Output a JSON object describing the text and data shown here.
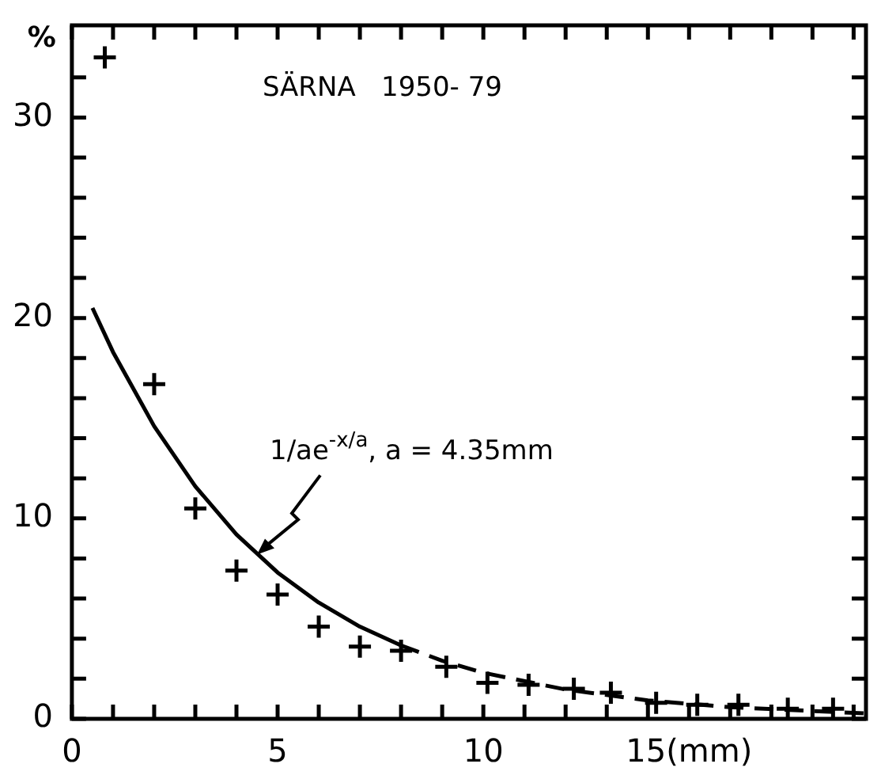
{
  "chart_data": {
    "type": "scatter",
    "title": "SÄRNA   1950- 79",
    "ylabel": "%",
    "xlim": [
      0,
      19.3
    ],
    "ylim": [
      0,
      34.6
    ],
    "xticks": [
      0,
      {
        "value": 1,
        "label": null
      },
      {
        "value": 2,
        "label": null
      },
      {
        "value": 3,
        "label": null
      },
      {
        "value": 4,
        "label": null
      },
      5,
      {
        "value": 6,
        "label": null
      },
      {
        "value": 7,
        "label": null
      },
      {
        "value": 8,
        "label": null
      },
      {
        "value": 9,
        "label": null
      },
      10,
      {
        "value": 11,
        "label": null
      },
      {
        "value": 12,
        "label": null
      },
      {
        "value": 13,
        "label": null
      },
      {
        "value": 14,
        "label": null
      },
      {
        "value": 15,
        "label": "15(mm)"
      },
      {
        "value": 16,
        "label": null
      },
      {
        "value": 17,
        "label": null
      },
      {
        "value": 18,
        "label": null
      },
      {
        "value": 19,
        "label": null
      }
    ],
    "yticks": [
      0,
      {
        "value": 2,
        "label": null
      },
      {
        "value": 4,
        "label": null
      },
      {
        "value": 6,
        "label": null
      },
      {
        "value": 8,
        "label": null
      },
      10,
      {
        "value": 12,
        "label": null
      },
      {
        "value": 14,
        "label": null
      },
      {
        "value": 16,
        "label": null
      },
      {
        "value": 18,
        "label": null
      },
      20,
      {
        "value": 22,
        "label": null
      },
      {
        "value": 24,
        "label": null
      },
      {
        "value": 26,
        "label": null
      },
      {
        "value": 28,
        "label": null
      },
      30,
      {
        "value": 32,
        "label": null
      }
    ],
    "grid": false,
    "legend": false,
    "annotations": [
      {
        "text": "1/ae$^{-x/a}$, a = 4.35mm",
        "x": 4.5,
        "y": 8.2
      }
    ],
    "series": [
      {
        "marker": "cross",
        "color": "#000000",
        "x": [
          0.8,
          2,
          3,
          4,
          5,
          6,
          7,
          8,
          9.1,
          10.1,
          11.1,
          12.2,
          13.1,
          14.2,
          15.2,
          16.2,
          17.4,
          18.5
        ],
        "values": [
          33.0,
          16.7,
          10.5,
          7.4,
          6.2,
          4.6,
          3.6,
          3.4,
          2.6,
          1.8,
          1.7,
          1.5,
          1.3,
          0.8,
          0.7,
          0.7,
          0.5,
          0.5
        ]
      },
      {
        "type": "line",
        "marker": "none",
        "line_style": "solid",
        "color": "#000000",
        "x": [
          0.5,
          1,
          2,
          3,
          4,
          5,
          6,
          7,
          8
        ],
        "values": [
          20.5,
          18.3,
          14.6,
          11.6,
          9.2,
          7.3,
          5.8,
          4.6,
          3.66
        ]
      },
      {
        "type": "line",
        "marker": "none",
        "line_style": "dashed",
        "color": "#000000",
        "x": [
          8,
          9,
          10,
          12,
          14,
          16,
          19.3
        ],
        "values": [
          3.66,
          2.9,
          2.3,
          1.46,
          0.92,
          0.58,
          0.27
        ]
      }
    ]
  }
}
